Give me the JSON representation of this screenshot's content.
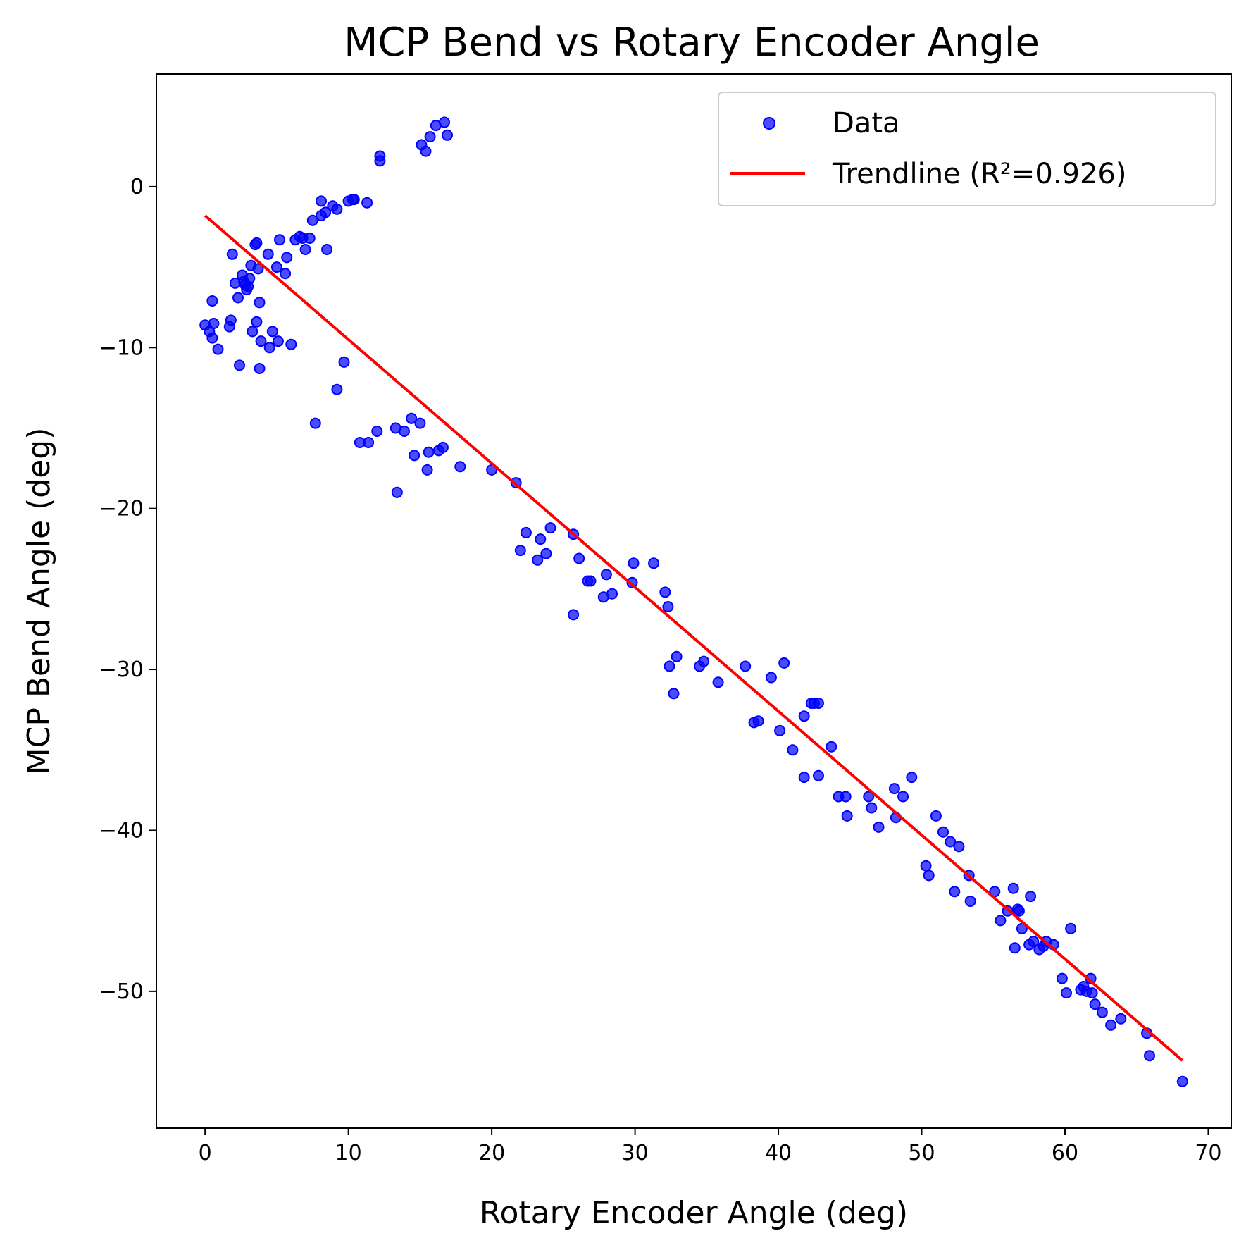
{
  "chart_data": {
    "type": "scatter",
    "title": "MCP Bend vs Rotary Encoder Angle",
    "xlabel": "Rotary Encoder Angle (deg)",
    "ylabel": "MCP Bend Angle (deg)",
    "xlim": [
      -3.4,
      71.6
    ],
    "ylim": [
      -58.5,
      7.0
    ],
    "xticks": [
      0,
      10,
      20,
      30,
      40,
      50,
      60,
      70
    ],
    "yticks": [
      0,
      -10,
      -20,
      -30,
      -40,
      -50
    ],
    "xtick_labels": [
      "0",
      "10",
      "20",
      "30",
      "40",
      "50",
      "60",
      "70"
    ],
    "ytick_labels": [
      "0",
      "−10",
      "−20",
      "−30",
      "−40",
      "−50"
    ],
    "grid": false,
    "legend_position": "top-right",
    "legend": {
      "data_label": "Data",
      "trend_label": "Trendline (R²=0.926)"
    },
    "colors": {
      "points": "#0000ff",
      "trendline": "#ff0000"
    },
    "trendline": {
      "x": [
        0,
        68.2
      ],
      "y": [
        -1.8,
        -54.3
      ]
    },
    "series": [
      {
        "name": "Data",
        "points": [
          [
            0,
            -8.6
          ],
          [
            0.3,
            -9.0
          ],
          [
            0.5,
            -7.1
          ],
          [
            0.5,
            -9.4
          ],
          [
            0.6,
            -8.5
          ],
          [
            0.9,
            -10.1
          ],
          [
            1.7,
            -8.7
          ],
          [
            1.8,
            -8.3
          ],
          [
            1.9,
            -4.2
          ],
          [
            2.1,
            -6.0
          ],
          [
            2.3,
            -6.9
          ],
          [
            2.4,
            -11.1
          ],
          [
            2.6,
            -5.5
          ],
          [
            2.7,
            -5.9
          ],
          [
            2.8,
            -6.1
          ],
          [
            2.9,
            -6.4
          ],
          [
            3.0,
            -6.2
          ],
          [
            3.1,
            -5.7
          ],
          [
            3.2,
            -4.9
          ],
          [
            3.3,
            -9.0
          ],
          [
            3.5,
            -3.6
          ],
          [
            3.6,
            -3.5
          ],
          [
            3.6,
            -8.4
          ],
          [
            3.7,
            -5.1
          ],
          [
            3.8,
            -7.2
          ],
          [
            3.8,
            -11.3
          ],
          [
            3.9,
            -9.6
          ],
          [
            4.4,
            -4.2
          ],
          [
            4.5,
            -10.0
          ],
          [
            4.7,
            -9.0
          ],
          [
            5.0,
            -5.0
          ],
          [
            5.1,
            -9.6
          ],
          [
            5.2,
            -3.3
          ],
          [
            5.6,
            -5.4
          ],
          [
            5.7,
            -4.4
          ],
          [
            6.0,
            -9.8
          ],
          [
            6.3,
            -3.3
          ],
          [
            6.6,
            -3.1
          ],
          [
            6.8,
            -3.2
          ],
          [
            7.0,
            -3.9
          ],
          [
            7.3,
            -3.2
          ],
          [
            7.5,
            -2.1
          ],
          [
            7.7,
            -14.7
          ],
          [
            8.1,
            -0.9
          ],
          [
            8.1,
            -1.8
          ],
          [
            8.4,
            -1.6
          ],
          [
            8.5,
            -3.9
          ],
          [
            8.9,
            -1.2
          ],
          [
            9.2,
            -1.4
          ],
          [
            9.2,
            -12.6
          ],
          [
            9.7,
            -10.9
          ],
          [
            10.0,
            -0.9
          ],
          [
            10.3,
            -0.8
          ],
          [
            10.4,
            -0.8
          ],
          [
            10.8,
            -15.9
          ],
          [
            11.3,
            -1.0
          ],
          [
            11.4,
            -15.9
          ],
          [
            12.0,
            -15.2
          ],
          [
            12.2,
            1.9
          ],
          [
            12.2,
            1.6
          ],
          [
            13.3,
            -15.0
          ],
          [
            13.4,
            -19.0
          ],
          [
            13.9,
            -15.2
          ],
          [
            14.4,
            -14.4
          ],
          [
            14.6,
            -16.7
          ],
          [
            15.0,
            -14.7
          ],
          [
            15.1,
            2.6
          ],
          [
            15.4,
            2.2
          ],
          [
            15.5,
            -17.6
          ],
          [
            15.6,
            -16.5
          ],
          [
            15.7,
            3.1
          ],
          [
            16.1,
            3.8
          ],
          [
            16.3,
            -16.4
          ],
          [
            16.6,
            -16.2
          ],
          [
            16.7,
            4.0
          ],
          [
            16.9,
            3.2
          ],
          [
            17.8,
            -17.4
          ],
          [
            20.0,
            -17.6
          ],
          [
            21.7,
            -18.4
          ],
          [
            22.0,
            -22.6
          ],
          [
            22.4,
            -21.5
          ],
          [
            23.2,
            -23.2
          ],
          [
            23.4,
            -21.9
          ],
          [
            23.8,
            -22.8
          ],
          [
            24.1,
            -21.2
          ],
          [
            25.7,
            -21.6
          ],
          [
            25.7,
            -26.6
          ],
          [
            26.1,
            -23.1
          ],
          [
            26.7,
            -24.5
          ],
          [
            26.9,
            -24.5
          ],
          [
            27.8,
            -25.5
          ],
          [
            28.0,
            -24.1
          ],
          [
            28.4,
            -25.3
          ],
          [
            29.8,
            -24.6
          ],
          [
            29.9,
            -23.4
          ],
          [
            31.3,
            -23.4
          ],
          [
            32.1,
            -25.2
          ],
          [
            32.3,
            -26.1
          ],
          [
            32.4,
            -29.8
          ],
          [
            32.7,
            -31.5
          ],
          [
            32.9,
            -29.2
          ],
          [
            34.5,
            -29.8
          ],
          [
            34.8,
            -29.5
          ],
          [
            35.8,
            -30.8
          ],
          [
            37.7,
            -29.8
          ],
          [
            38.3,
            -33.3
          ],
          [
            38.6,
            -33.2
          ],
          [
            39.5,
            -30.5
          ],
          [
            40.1,
            -33.8
          ],
          [
            40.4,
            -29.6
          ],
          [
            41.0,
            -35.0
          ],
          [
            41.8,
            -36.7
          ],
          [
            41.8,
            -32.9
          ],
          [
            42.3,
            -32.1
          ],
          [
            42.5,
            -32.1
          ],
          [
            42.8,
            -32.1
          ],
          [
            42.8,
            -36.6
          ],
          [
            43.7,
            -34.8
          ],
          [
            44.2,
            -37.9
          ],
          [
            44.7,
            -37.9
          ],
          [
            44.8,
            -39.1
          ],
          [
            46.3,
            -37.9
          ],
          [
            46.5,
            -38.6
          ],
          [
            47.0,
            -39.8
          ],
          [
            48.1,
            -37.4
          ],
          [
            48.2,
            -39.2
          ],
          [
            48.7,
            -37.9
          ],
          [
            49.3,
            -36.7
          ],
          [
            50.3,
            -42.2
          ],
          [
            50.5,
            -42.8
          ],
          [
            51.0,
            -39.1
          ],
          [
            51.5,
            -40.1
          ],
          [
            52.0,
            -40.7
          ],
          [
            52.3,
            -43.8
          ],
          [
            52.6,
            -41.0
          ],
          [
            53.3,
            -42.8
          ],
          [
            53.4,
            -44.4
          ],
          [
            55.1,
            -43.8
          ],
          [
            55.5,
            -45.6
          ],
          [
            56.0,
            -45.0
          ],
          [
            56.4,
            -43.6
          ],
          [
            56.5,
            -47.3
          ],
          [
            56.7,
            -44.9
          ],
          [
            56.8,
            -45.0
          ],
          [
            57.0,
            -46.1
          ],
          [
            57.5,
            -47.1
          ],
          [
            57.6,
            -44.1
          ],
          [
            57.8,
            -46.9
          ],
          [
            58.2,
            -47.4
          ],
          [
            58.5,
            -47.2
          ],
          [
            58.7,
            -46.9
          ],
          [
            59.2,
            -47.1
          ],
          [
            59.8,
            -49.2
          ],
          [
            60.1,
            -50.1
          ],
          [
            60.4,
            -46.1
          ],
          [
            61.1,
            -49.9
          ],
          [
            61.3,
            -49.7
          ],
          [
            61.5,
            -50.0
          ],
          [
            61.8,
            -49.2
          ],
          [
            61.9,
            -50.1
          ],
          [
            62.1,
            -50.8
          ],
          [
            62.6,
            -51.3
          ],
          [
            63.2,
            -52.1
          ],
          [
            63.9,
            -51.7
          ],
          [
            65.7,
            -52.6
          ],
          [
            65.9,
            -54.0
          ],
          [
            68.2,
            -55.6
          ]
        ]
      }
    ]
  }
}
